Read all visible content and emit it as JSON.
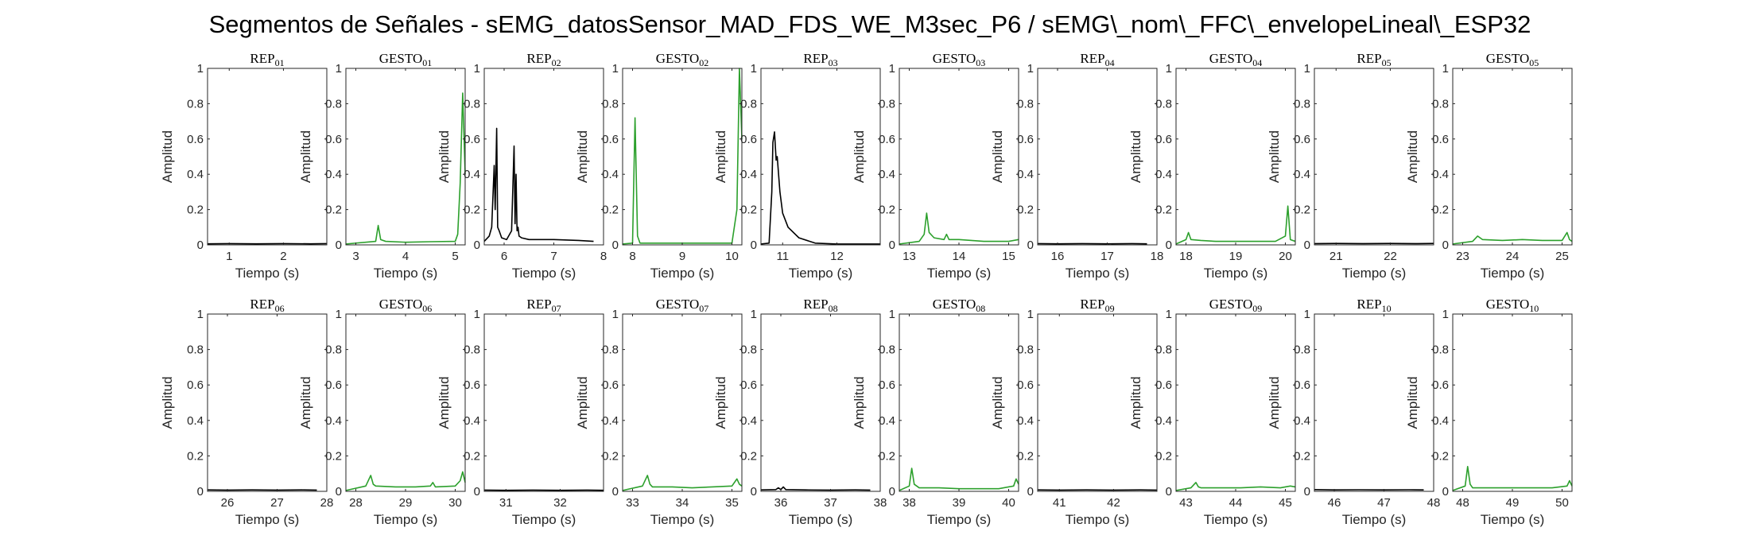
{
  "figure_title": "Segmentos de Señales - sEMG_datosSensor_MAD_FDS_WE_M3sec_P6 / sEMG\\_nom\\_FFC\\_envelopeLineal\\_ESP32",
  "colors": {
    "rep": "#000000",
    "gesto": "#2ca02c",
    "axis": "#262626"
  },
  "chart_data": [
    {
      "type": "line",
      "title": "REP_01",
      "xlabel": "Tiempo (s)",
      "ylabel": "Amplitud",
      "xlim": [
        0.6,
        2.8
      ],
      "ylim": [
        0,
        1
      ],
      "xticks": [
        1,
        2
      ],
      "yticks": [
        0,
        0.2,
        0.4,
        0.6,
        0.8,
        1
      ],
      "series": [
        {
          "color": "rep",
          "x": [
            0.6,
            1.0,
            1.5,
            2.0,
            2.5,
            2.8
          ],
          "y": [
            0.006,
            0.007,
            0.006,
            0.007,
            0.006,
            0.007
          ]
        }
      ]
    },
    {
      "type": "line",
      "title": "GESTO_01",
      "xlabel": "Tiempo (s)",
      "ylabel": "Amplitud",
      "xlim": [
        2.8,
        5.2
      ],
      "ylim": [
        0,
        1
      ],
      "xticks": [
        3,
        4,
        5
      ],
      "yticks": [
        0,
        0.2,
        0.4,
        0.6,
        0.8,
        1
      ],
      "series": [
        {
          "color": "gesto",
          "x": [
            2.8,
            3.4,
            3.45,
            3.5,
            3.6,
            4.0,
            4.5,
            5.0,
            5.05,
            5.1,
            5.15,
            5.2
          ],
          "y": [
            0.005,
            0.02,
            0.11,
            0.03,
            0.02,
            0.015,
            0.018,
            0.02,
            0.06,
            0.35,
            0.86,
            0.4
          ]
        }
      ]
    },
    {
      "type": "line",
      "title": "REP_02",
      "xlabel": "Tiempo (s)",
      "ylabel": "Amplitud",
      "xlim": [
        5.6,
        8.0
      ],
      "ylim": [
        0,
        1
      ],
      "xticks": [
        6,
        7,
        8
      ],
      "yticks": [
        0,
        0.2,
        0.4,
        0.6,
        0.8,
        1
      ],
      "series": [
        {
          "color": "rep",
          "x": [
            5.6,
            5.7,
            5.75,
            5.8,
            5.82,
            5.85,
            5.87,
            5.9,
            5.95,
            6.05,
            6.15,
            6.2,
            6.22,
            6.24,
            6.26,
            6.28,
            6.3,
            6.35,
            6.5,
            7.0,
            7.5,
            7.8
          ],
          "y": [
            0.02,
            0.05,
            0.1,
            0.45,
            0.2,
            0.66,
            0.1,
            0.08,
            0.04,
            0.03,
            0.08,
            0.56,
            0.12,
            0.4,
            0.08,
            0.1,
            0.05,
            0.04,
            0.03,
            0.03,
            0.025,
            0.02
          ]
        }
      ]
    },
    {
      "type": "line",
      "title": "GESTO_02",
      "xlabel": "Tiempo (s)",
      "ylabel": "Amplitud",
      "xlim": [
        7.8,
        10.2
      ],
      "ylim": [
        0,
        1
      ],
      "xticks": [
        8,
        9,
        10
      ],
      "yticks": [
        0,
        0.2,
        0.4,
        0.6,
        0.8,
        1
      ],
      "series": [
        {
          "color": "gesto",
          "x": [
            7.8,
            8.0,
            8.05,
            8.1,
            8.15,
            8.5,
            9.0,
            9.5,
            10.0,
            10.1,
            10.15,
            10.2
          ],
          "y": [
            0.005,
            0.01,
            0.72,
            0.05,
            0.01,
            0.01,
            0.01,
            0.01,
            0.01,
            0.2,
            1.0,
            0.6
          ]
        }
      ]
    },
    {
      "type": "line",
      "title": "REP_03",
      "xlabel": "Tiempo (s)",
      "ylabel": "Amplitud",
      "xlim": [
        10.6,
        12.8
      ],
      "ylim": [
        0,
        1
      ],
      "xticks": [
        11,
        12
      ],
      "yticks": [
        0,
        0.2,
        0.4,
        0.6,
        0.8,
        1
      ],
      "series": [
        {
          "color": "rep",
          "x": [
            10.6,
            10.75,
            10.8,
            10.82,
            10.85,
            10.88,
            10.9,
            10.95,
            11.0,
            11.1,
            11.3,
            11.6,
            12.0,
            12.5,
            12.8
          ],
          "y": [
            0.005,
            0.01,
            0.3,
            0.58,
            0.64,
            0.48,
            0.5,
            0.3,
            0.18,
            0.1,
            0.04,
            0.01,
            0.005,
            0.005,
            0.005
          ]
        }
      ]
    },
    {
      "type": "line",
      "title": "GESTO_03",
      "xlabel": "Tiempo (s)",
      "ylabel": "Amplitud",
      "xlim": [
        12.8,
        15.2
      ],
      "ylim": [
        0,
        1
      ],
      "xticks": [
        13,
        14,
        15
      ],
      "yticks": [
        0,
        0.2,
        0.4,
        0.6,
        0.8,
        1
      ],
      "series": [
        {
          "color": "gesto",
          "x": [
            12.8,
            13.2,
            13.3,
            13.35,
            13.4,
            13.5,
            13.7,
            13.75,
            13.8,
            14.0,
            14.5,
            15.0,
            15.2
          ],
          "y": [
            0.005,
            0.02,
            0.06,
            0.18,
            0.07,
            0.04,
            0.03,
            0.06,
            0.03,
            0.03,
            0.02,
            0.02,
            0.03
          ]
        }
      ]
    },
    {
      "type": "line",
      "title": "REP_04",
      "xlabel": "Tiempo (s)",
      "ylabel": "Amplitud",
      "xlim": [
        15.6,
        18.0
      ],
      "ylim": [
        0,
        1
      ],
      "xticks": [
        16,
        17,
        18
      ],
      "yticks": [
        0,
        0.2,
        0.4,
        0.6,
        0.8,
        1
      ],
      "series": [
        {
          "color": "rep",
          "x": [
            15.6,
            16.0,
            16.5,
            17.0,
            17.5,
            17.8
          ],
          "y": [
            0.007,
            0.006,
            0.007,
            0.006,
            0.007,
            0.006
          ]
        }
      ]
    },
    {
      "type": "line",
      "title": "GESTO_04",
      "xlabel": "Tiempo (s)",
      "ylabel": "Amplitud",
      "xlim": [
        17.8,
        20.2
      ],
      "ylim": [
        0,
        1
      ],
      "xticks": [
        18,
        19,
        20
      ],
      "yticks": [
        0,
        0.2,
        0.4,
        0.6,
        0.8,
        1
      ],
      "series": [
        {
          "color": "gesto",
          "x": [
            17.8,
            18.0,
            18.05,
            18.1,
            18.3,
            18.6,
            19.0,
            19.4,
            19.8,
            20.0,
            20.05,
            20.1,
            20.2
          ],
          "y": [
            0.005,
            0.03,
            0.07,
            0.03,
            0.025,
            0.02,
            0.02,
            0.02,
            0.02,
            0.05,
            0.22,
            0.03,
            0.02
          ]
        }
      ]
    },
    {
      "type": "line",
      "title": "REP_05",
      "xlabel": "Tiempo (s)",
      "ylabel": "Amplitud",
      "xlim": [
        20.6,
        22.8
      ],
      "ylim": [
        0,
        1
      ],
      "xticks": [
        21,
        22
      ],
      "yticks": [
        0,
        0.2,
        0.4,
        0.6,
        0.8,
        1
      ],
      "series": [
        {
          "color": "rep",
          "x": [
            20.6,
            21.0,
            21.5,
            22.0,
            22.5,
            22.8
          ],
          "y": [
            0.007,
            0.008,
            0.007,
            0.008,
            0.007,
            0.008
          ]
        }
      ]
    },
    {
      "type": "line",
      "title": "GESTO_05",
      "xlabel": "Tiempo (s)",
      "ylabel": "Amplitud",
      "xlim": [
        22.8,
        25.2
      ],
      "ylim": [
        0,
        1
      ],
      "xticks": [
        23,
        24,
        25
      ],
      "yticks": [
        0,
        0.2,
        0.4,
        0.6,
        0.8,
        1
      ],
      "series": [
        {
          "color": "gesto",
          "x": [
            22.8,
            23.2,
            23.3,
            23.4,
            23.8,
            24.2,
            24.6,
            25.0,
            25.1,
            25.15,
            25.2
          ],
          "y": [
            0.005,
            0.02,
            0.05,
            0.03,
            0.025,
            0.03,
            0.025,
            0.025,
            0.07,
            0.03,
            0.02
          ]
        }
      ]
    },
    {
      "type": "line",
      "title": "REP_06",
      "xlabel": "Tiempo (s)",
      "ylabel": "Amplitud",
      "xlim": [
        25.6,
        28.0
      ],
      "ylim": [
        0,
        1
      ],
      "xticks": [
        26,
        27,
        28
      ],
      "yticks": [
        0,
        0.2,
        0.4,
        0.6,
        0.8,
        1
      ],
      "series": [
        {
          "color": "rep",
          "x": [
            25.6,
            26.0,
            26.5,
            27.0,
            27.5,
            27.8
          ],
          "y": [
            0.008,
            0.007,
            0.008,
            0.007,
            0.008,
            0.007
          ]
        }
      ]
    },
    {
      "type": "line",
      "title": "GESTO_06",
      "xlabel": "Tiempo (s)",
      "ylabel": "Amplitud",
      "xlim": [
        27.8,
        30.2
      ],
      "ylim": [
        0,
        1
      ],
      "xticks": [
        28,
        29,
        30
      ],
      "yticks": [
        0,
        0.2,
        0.4,
        0.6,
        0.8,
        1
      ],
      "series": [
        {
          "color": "gesto",
          "x": [
            27.8,
            28.2,
            28.3,
            28.35,
            28.4,
            28.8,
            29.2,
            29.5,
            29.55,
            29.6,
            30.0,
            30.1,
            30.15,
            30.2
          ],
          "y": [
            0.005,
            0.03,
            0.09,
            0.04,
            0.03,
            0.025,
            0.025,
            0.03,
            0.05,
            0.025,
            0.03,
            0.06,
            0.11,
            0.05
          ]
        }
      ]
    },
    {
      "type": "line",
      "title": "REP_07",
      "xlabel": "Tiempo (s)",
      "ylabel": "Amplitud",
      "xlim": [
        30.6,
        32.8
      ],
      "ylim": [
        0,
        1
      ],
      "xticks": [
        31,
        32
      ],
      "yticks": [
        0,
        0.2,
        0.4,
        0.6,
        0.8,
        1
      ],
      "series": [
        {
          "color": "rep",
          "x": [
            30.6,
            31.0,
            31.5,
            32.0,
            32.5,
            32.8
          ],
          "y": [
            0.007,
            0.006,
            0.007,
            0.006,
            0.007,
            0.006
          ]
        }
      ]
    },
    {
      "type": "line",
      "title": "GESTO_07",
      "xlabel": "Tiempo (s)",
      "ylabel": "Amplitud",
      "xlim": [
        32.8,
        35.2
      ],
      "ylim": [
        0,
        1
      ],
      "xticks": [
        33,
        34,
        35
      ],
      "yticks": [
        0,
        0.2,
        0.4,
        0.6,
        0.8,
        1
      ],
      "series": [
        {
          "color": "gesto",
          "x": [
            32.8,
            33.2,
            33.3,
            33.35,
            33.4,
            33.8,
            34.2,
            34.6,
            35.0,
            35.1,
            35.15,
            35.2
          ],
          "y": [
            0.005,
            0.03,
            0.09,
            0.04,
            0.025,
            0.025,
            0.02,
            0.025,
            0.03,
            0.07,
            0.04,
            0.03
          ]
        }
      ]
    },
    {
      "type": "line",
      "title": "REP_08",
      "xlabel": "Tiempo (s)",
      "ylabel": "Amplitud",
      "xlim": [
        35.6,
        38.0
      ],
      "ylim": [
        0,
        1
      ],
      "xticks": [
        36,
        37,
        38
      ],
      "yticks": [
        0,
        0.2,
        0.4,
        0.6,
        0.8,
        1
      ],
      "series": [
        {
          "color": "rep",
          "x": [
            35.6,
            35.9,
            35.95,
            36.0,
            36.05,
            36.1,
            36.5,
            37.0,
            37.5,
            37.8
          ],
          "y": [
            0.008,
            0.01,
            0.02,
            0.01,
            0.025,
            0.01,
            0.008,
            0.007,
            0.008,
            0.007
          ]
        }
      ]
    },
    {
      "type": "line",
      "title": "GESTO_08",
      "xlabel": "Tiempo (s)",
      "ylabel": "Amplitud",
      "xlim": [
        37.8,
        40.2
      ],
      "ylim": [
        0,
        1
      ],
      "xticks": [
        38,
        39,
        40
      ],
      "yticks": [
        0,
        0.2,
        0.4,
        0.6,
        0.8,
        1
      ],
      "series": [
        {
          "color": "gesto",
          "x": [
            37.8,
            38.0,
            38.05,
            38.1,
            38.2,
            38.6,
            39.0,
            39.4,
            39.8,
            40.1,
            40.15,
            40.2
          ],
          "y": [
            0.005,
            0.03,
            0.13,
            0.04,
            0.02,
            0.02,
            0.015,
            0.015,
            0.015,
            0.03,
            0.07,
            0.04
          ]
        }
      ]
    },
    {
      "type": "line",
      "title": "REP_09",
      "xlabel": "Tiempo (s)",
      "ylabel": "Amplitud",
      "xlim": [
        40.6,
        42.8
      ],
      "ylim": [
        0,
        1
      ],
      "xticks": [
        41,
        42
      ],
      "yticks": [
        0,
        0.2,
        0.4,
        0.6,
        0.8,
        1
      ],
      "series": [
        {
          "color": "rep",
          "x": [
            40.6,
            41.0,
            41.5,
            42.0,
            42.5,
            42.8
          ],
          "y": [
            0.008,
            0.007,
            0.008,
            0.007,
            0.008,
            0.007
          ]
        }
      ]
    },
    {
      "type": "line",
      "title": "GESTO_09",
      "xlabel": "Tiempo (s)",
      "ylabel": "Amplitud",
      "xlim": [
        42.8,
        45.2
      ],
      "ylim": [
        0,
        1
      ],
      "xticks": [
        43,
        44,
        45
      ],
      "yticks": [
        0,
        0.2,
        0.4,
        0.6,
        0.8,
        1
      ],
      "series": [
        {
          "color": "gesto",
          "x": [
            42.8,
            43.1,
            43.2,
            43.25,
            43.3,
            43.7,
            44.1,
            44.5,
            44.9,
            45.1,
            45.2
          ],
          "y": [
            0.005,
            0.02,
            0.05,
            0.025,
            0.02,
            0.02,
            0.02,
            0.025,
            0.02,
            0.03,
            0.025
          ]
        }
      ]
    },
    {
      "type": "line",
      "title": "REP_10",
      "xlabel": "Tiempo (s)",
      "ylabel": "Amplitud",
      "xlim": [
        45.6,
        48.0
      ],
      "ylim": [
        0,
        1
      ],
      "xticks": [
        46,
        47,
        48
      ],
      "yticks": [
        0,
        0.2,
        0.4,
        0.6,
        0.8,
        1
      ],
      "series": [
        {
          "color": "rep",
          "x": [
            45.6,
            46.0,
            46.5,
            47.0,
            47.5,
            47.8
          ],
          "y": [
            0.01,
            0.008,
            0.009,
            0.008,
            0.009,
            0.008
          ]
        }
      ]
    },
    {
      "type": "line",
      "title": "GESTO_10",
      "xlabel": "Tiempo (s)",
      "ylabel": "Amplitud",
      "xlim": [
        47.8,
        50.2
      ],
      "ylim": [
        0,
        1
      ],
      "xticks": [
        48,
        49,
        50
      ],
      "yticks": [
        0,
        0.2,
        0.4,
        0.6,
        0.8,
        1
      ],
      "series": [
        {
          "color": "gesto",
          "x": [
            47.8,
            48.05,
            48.1,
            48.15,
            48.2,
            48.6,
            49.0,
            49.4,
            49.8,
            50.1,
            50.15,
            50.2
          ],
          "y": [
            0.005,
            0.03,
            0.14,
            0.04,
            0.02,
            0.02,
            0.02,
            0.02,
            0.02,
            0.03,
            0.06,
            0.03
          ]
        }
      ]
    }
  ]
}
